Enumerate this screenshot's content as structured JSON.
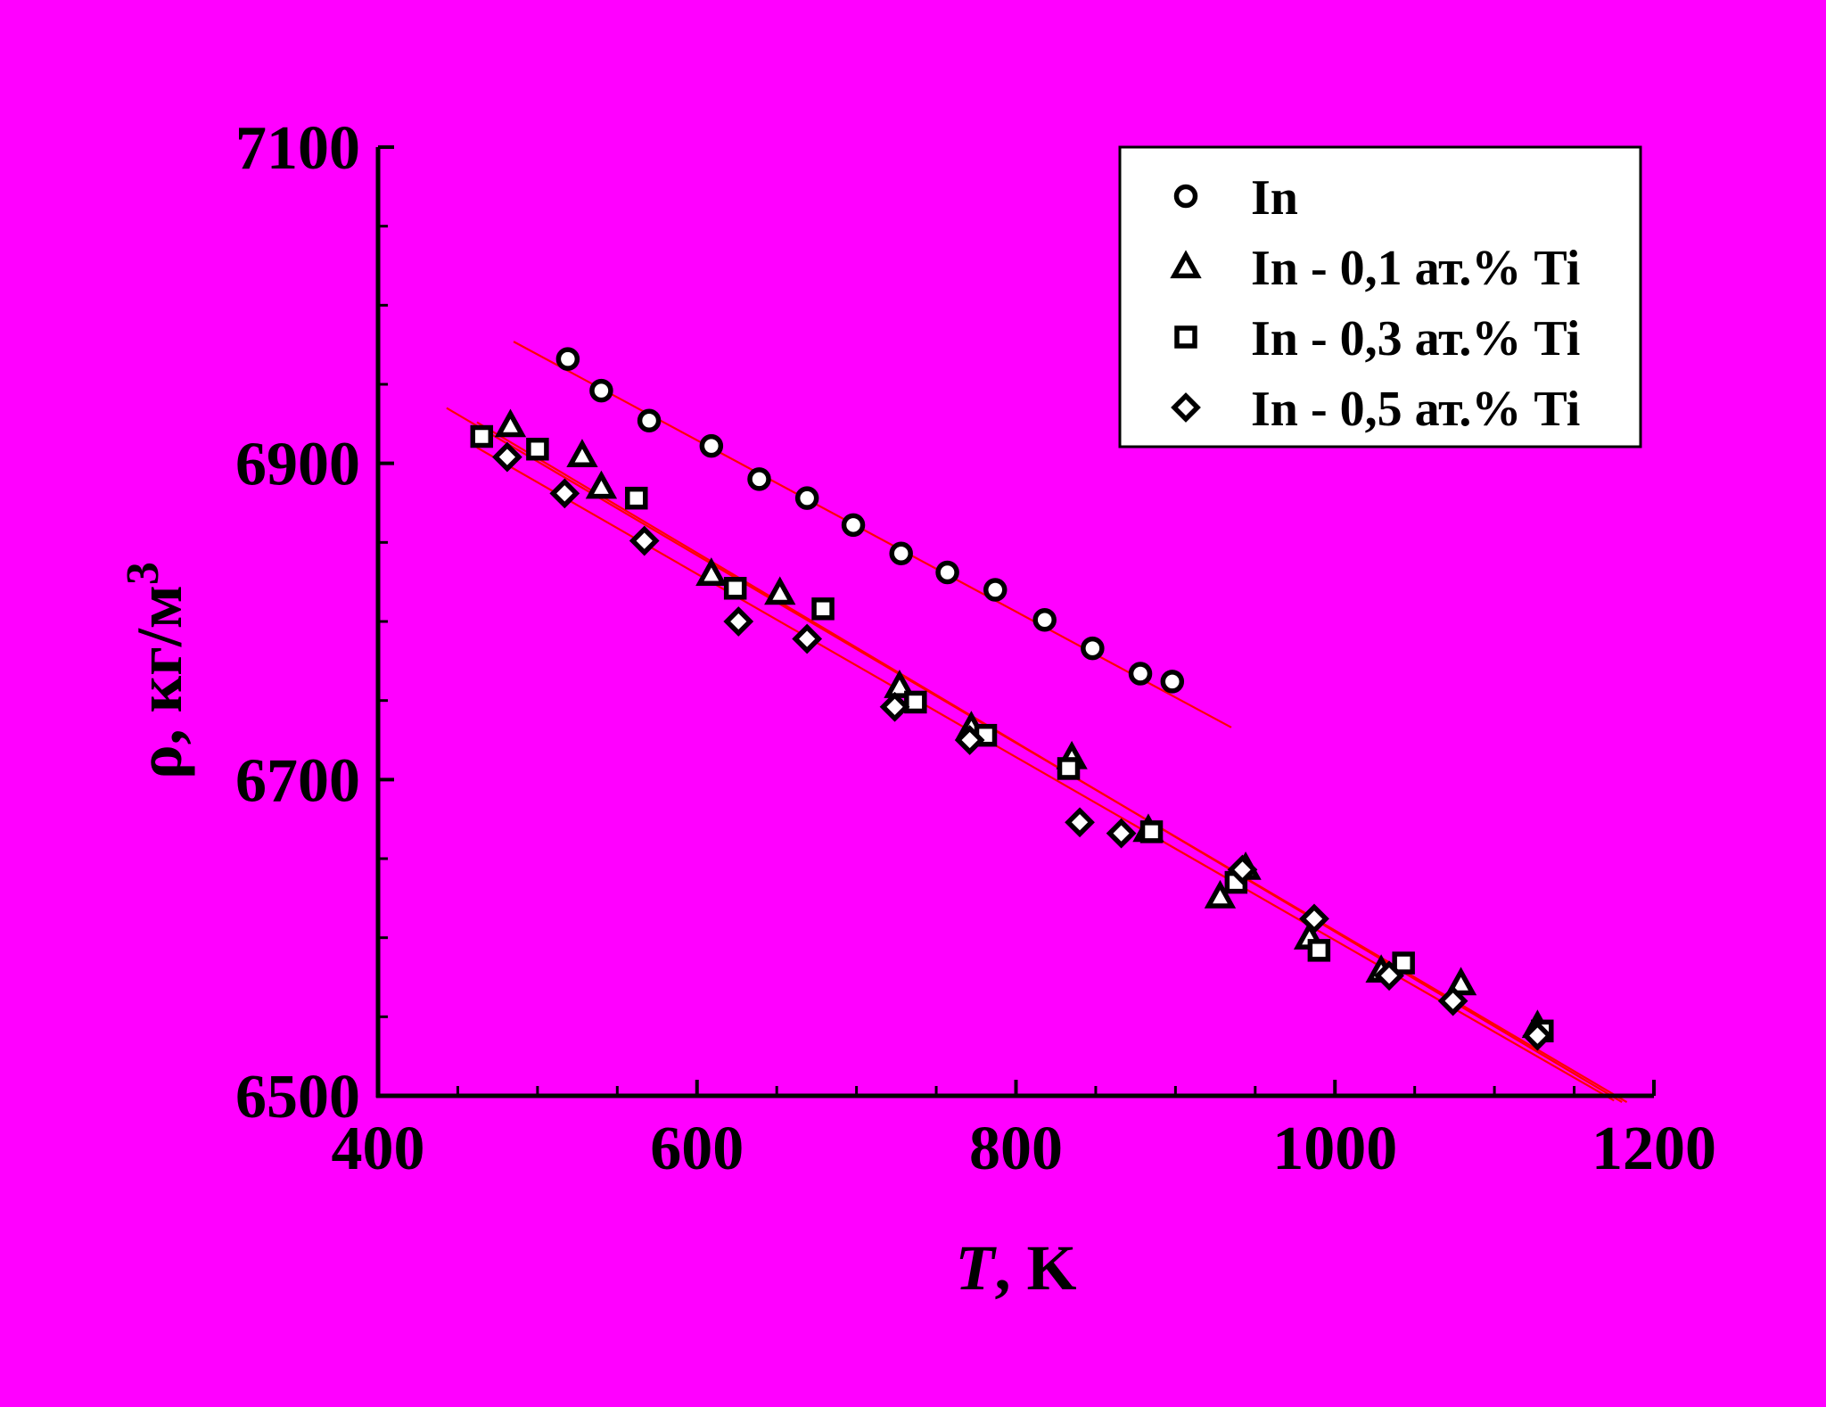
{
  "chart_data": {
    "type": "scatter",
    "title": "",
    "xlabel": {
      "italic": "T",
      "rest": ", K"
    },
    "ylabel": {
      "base": "ρ, кг/м",
      "sup": "3"
    },
    "xlim": [
      400,
      1200
    ],
    "ylim": [
      6500,
      7100
    ],
    "xticks": [
      400,
      600,
      800,
      1000,
      1200
    ],
    "yticks": [
      6500,
      6700,
      6900,
      7100
    ],
    "xtick_labels": [
      "400",
      "600",
      "800",
      "1000",
      "1200"
    ],
    "ytick_labels": [
      "6500",
      "6700",
      "6900",
      "7100"
    ],
    "legend_position": "top-right",
    "grid": false,
    "colors": {
      "background": "#ff00ff",
      "fit_line": "#ff0000",
      "marker": "#000000",
      "marker_fill": "#ffffff"
    },
    "series": [
      {
        "name": "In",
        "marker": "circle",
        "fit": {
          "x": [
            485,
            935
          ],
          "y": [
            6977,
            6733
          ]
        },
        "points": [
          {
            "x": 519,
            "y": 6966
          },
          {
            "x": 540,
            "y": 6946
          },
          {
            "x": 570,
            "y": 6927
          },
          {
            "x": 609,
            "y": 6911
          },
          {
            "x": 639,
            "y": 6890
          },
          {
            "x": 669,
            "y": 6878
          },
          {
            "x": 698,
            "y": 6861
          },
          {
            "x": 728,
            "y": 6843
          },
          {
            "x": 757,
            "y": 6831
          },
          {
            "x": 787,
            "y": 6820
          },
          {
            "x": 818,
            "y": 6801
          },
          {
            "x": 848,
            "y": 6783
          },
          {
            "x": 878,
            "y": 6767
          },
          {
            "x": 898,
            "y": 6762
          }
        ]
      },
      {
        "name": "In - 0,1 ат.% Ti",
        "marker": "triangle",
        "fit": {
          "x": [
            462,
            1180
          ],
          "y": [
            6926,
            6496
          ]
        },
        "points": [
          {
            "x": 483,
            "y": 6924
          },
          {
            "x": 528,
            "y": 6905
          },
          {
            "x": 540,
            "y": 6885
          },
          {
            "x": 609,
            "y": 6830
          },
          {
            "x": 652,
            "y": 6818
          },
          {
            "x": 727,
            "y": 6759
          },
          {
            "x": 772,
            "y": 6733
          },
          {
            "x": 835,
            "y": 6714
          },
          {
            "x": 883,
            "y": 6668
          },
          {
            "x": 928,
            "y": 6626
          },
          {
            "x": 944,
            "y": 6644
          },
          {
            "x": 984,
            "y": 6600
          },
          {
            "x": 1029,
            "y": 6579
          },
          {
            "x": 1079,
            "y": 6571
          },
          {
            "x": 1127,
            "y": 6544
          }
        ]
      },
      {
        "name": "In - 0,3 ат.% Ti",
        "marker": "square",
        "fit": {
          "x": [
            443,
            1183
          ],
          "y": [
            6935,
            6496
          ]
        },
        "points": [
          {
            "x": 465,
            "y": 6917
          },
          {
            "x": 500,
            "y": 6909
          },
          {
            "x": 562,
            "y": 6878
          },
          {
            "x": 624,
            "y": 6821
          },
          {
            "x": 679,
            "y": 6808
          },
          {
            "x": 737,
            "y": 6749
          },
          {
            "x": 781,
            "y": 6728
          },
          {
            "x": 833,
            "y": 6707
          },
          {
            "x": 885,
            "y": 6667
          },
          {
            "x": 938,
            "y": 6635
          },
          {
            "x": 990,
            "y": 6592
          },
          {
            "x": 1043,
            "y": 6584
          },
          {
            "x": 1130,
            "y": 6541
          }
        ]
      },
      {
        "name": "In - 0,5 ат.% Ti",
        "marker": "diamond",
        "fit": {
          "x": [
            462,
            1175
          ],
          "y": [
            6910,
            6497
          ]
        },
        "points": [
          {
            "x": 481,
            "y": 6904
          },
          {
            "x": 517,
            "y": 6881
          },
          {
            "x": 567,
            "y": 6851
          },
          {
            "x": 626,
            "y": 6800
          },
          {
            "x": 669,
            "y": 6789
          },
          {
            "x": 724,
            "y": 6746
          },
          {
            "x": 771,
            "y": 6725
          },
          {
            "x": 840,
            "y": 6673
          },
          {
            "x": 866,
            "y": 6666
          },
          {
            "x": 942,
            "y": 6643
          },
          {
            "x": 987,
            "y": 6612
          },
          {
            "x": 1034,
            "y": 6576
          },
          {
            "x": 1074,
            "y": 6560
          },
          {
            "x": 1127,
            "y": 6538
          }
        ]
      }
    ]
  }
}
